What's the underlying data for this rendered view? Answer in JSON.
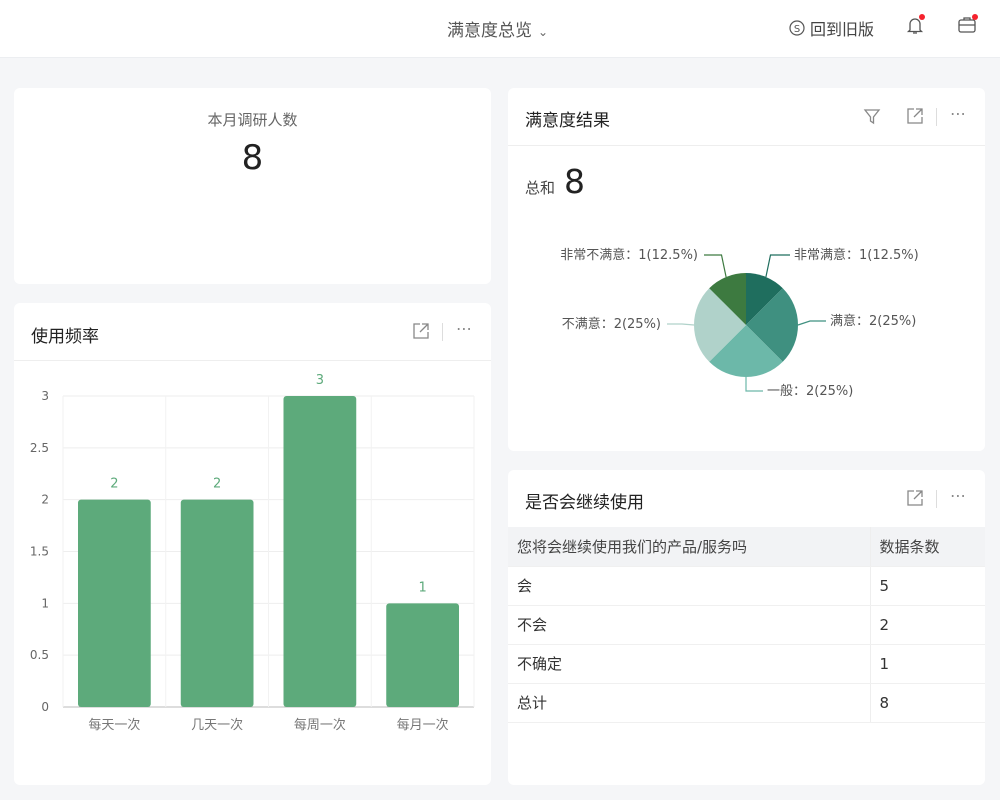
{
  "header": {
    "title": "满意度总览",
    "back_label": "回到旧版",
    "icons": [
      "chevron-down-icon",
      "switch-icon",
      "bell-icon",
      "briefcase-icon"
    ]
  },
  "kpi": {
    "label": "本月调研人数",
    "value": "8"
  },
  "usage": {
    "title": "使用频率"
  },
  "satisfaction": {
    "title": "满意度结果",
    "total_label": "总和",
    "total_value": "8"
  },
  "continue": {
    "title": "是否会继续使用",
    "columns": [
      "您将会继续使用我们的产品/服务吗",
      "数据条数"
    ],
    "rows": [
      [
        "会",
        "5"
      ],
      [
        "不会",
        "2"
      ],
      [
        "不确定",
        "1"
      ],
      [
        "总计",
        "8"
      ]
    ]
  },
  "chart_data": [
    {
      "type": "bar",
      "categories": [
        "每天一次",
        "几天一次",
        "每周一次",
        "每月一次"
      ],
      "values": [
        2,
        2,
        3,
        1
      ],
      "ylim": [
        0,
        3
      ],
      "yticks": [
        "0",
        "0.5",
        "1",
        "1.5",
        "2",
        "2.5",
        "3"
      ],
      "data_labels": [
        "2",
        "2",
        "3",
        "1"
      ],
      "color": "#5daa7b",
      "grid": true
    },
    {
      "type": "pie",
      "labels": [
        "非常满意：1(12.5%)",
        "满意：2(25%)",
        "一般：2(25%)",
        "不满意：2(25%)",
        "非常不满意：1(12.5%)"
      ],
      "categories": [
        "非常满意",
        "满意",
        "一般",
        "不满意",
        "非常不满意"
      ],
      "values": [
        1,
        2,
        2,
        2,
        1
      ],
      "colors": [
        "#1f6e5e",
        "#3f9080",
        "#6cb8a9",
        "#b0d2ca",
        "#3d7a40"
      ]
    }
  ]
}
